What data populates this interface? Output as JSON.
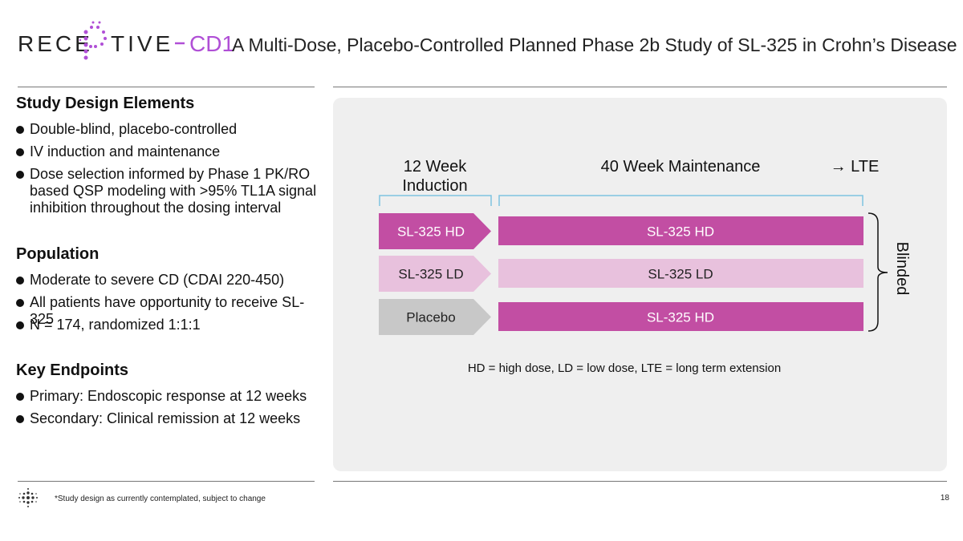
{
  "header": {
    "logo": {
      "left": "RECE",
      "right": "TIVE",
      "suffix": "CD1"
    },
    "title": "A Multi-Dose, Placebo-Controlled Planned Phase 2b Study of SL-325 in Crohn’s Disease"
  },
  "sections": [
    {
      "heading": "Study Design Elements",
      "bullets": [
        "Double-blind, placebo-controlled",
        "IV induction and maintenance",
        "Dose selection informed by Phase 1 PK/RO based QSP modeling with >95% TL1A signal inhibition throughout the dosing interval"
      ]
    },
    {
      "heading": "Population",
      "bullets": [
        "Moderate to severe CD (CDAI 220-450)",
        "All patients have opportunity to receive SL-325",
        "N = 174, randomized 1:1:1"
      ]
    },
    {
      "heading": "Key Endpoints",
      "bullets": [
        "Primary: Endoscopic response at 12 weeks",
        "Secondary: Clinical remission at 12 weeks"
      ]
    }
  ],
  "diagram": {
    "phases": {
      "induction": "12 Week Induction",
      "maintenance": "40 Week Maintenance",
      "extension": "→ LTE"
    },
    "arms": [
      {
        "induction": {
          "label": "SL-325 HD",
          "color": "#c24ea3"
        },
        "maintenance": {
          "label": "SL-325 HD",
          "color": "#c24ea3"
        }
      },
      {
        "induction": {
          "label": "SL-325 LD",
          "color": "#e8c1dd"
        },
        "maintenance": {
          "label": "SL-325 LD",
          "color": "#e8c1dd"
        }
      },
      {
        "induction": {
          "label": "Placebo",
          "color": "#c8c8c8"
        },
        "maintenance": {
          "label": "SL-325 HD",
          "color": "#c24ea3"
        }
      }
    ],
    "blinded": "Blinded",
    "note": "HD = high dose, LD = low dose, LTE = long term extension"
  },
  "footer": {
    "footnote": "*Study design as currently contemplated, subject to change",
    "page": "18"
  }
}
